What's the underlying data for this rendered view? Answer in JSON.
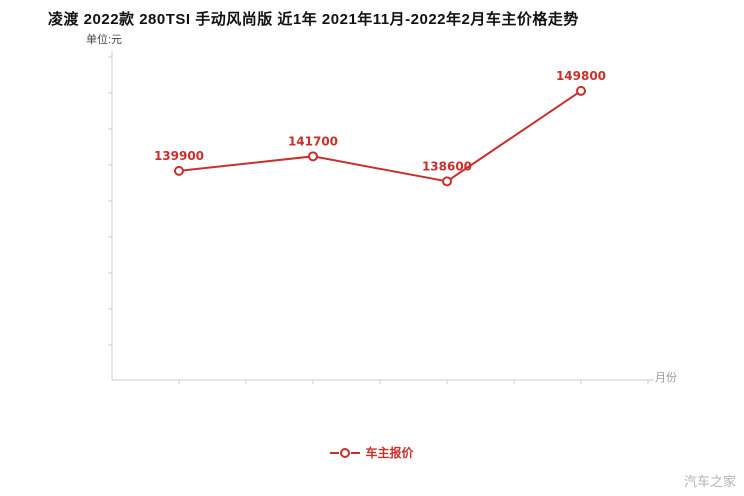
{
  "header": {
    "title": "凌渡 2022款 280TSI 手动风尚版 近1年 2021年11月-2022年2月车主价格走势",
    "unit_label": "单位:元"
  },
  "axes": {
    "x_label": "月份"
  },
  "legend": {
    "series_label": "车主报价"
  },
  "watermark": "汽车之家",
  "colors": {
    "line": "#c9302c",
    "point_fill": "#ffffff",
    "point_label": "#c9302c",
    "axis": "#cccccc",
    "title": "#111111",
    "muted": "#999999"
  },
  "chart_data": {
    "type": "line",
    "title": "凌渡 2022款 280TSI 手动风尚版 近1年 2021年11月-2022年2月车主价格走势",
    "xlabel": "月份",
    "ylabel": "单位:元",
    "x_period": "2021年11月-2022年2月",
    "series_name": "车主报价",
    "values": [
      139900,
      141700,
      138600,
      149800
    ],
    "point_labels": [
      "139900",
      "141700",
      "138600",
      "149800"
    ],
    "ylim": [
      114000,
      154000
    ],
    "grid": false,
    "legend_position": "bottom"
  }
}
